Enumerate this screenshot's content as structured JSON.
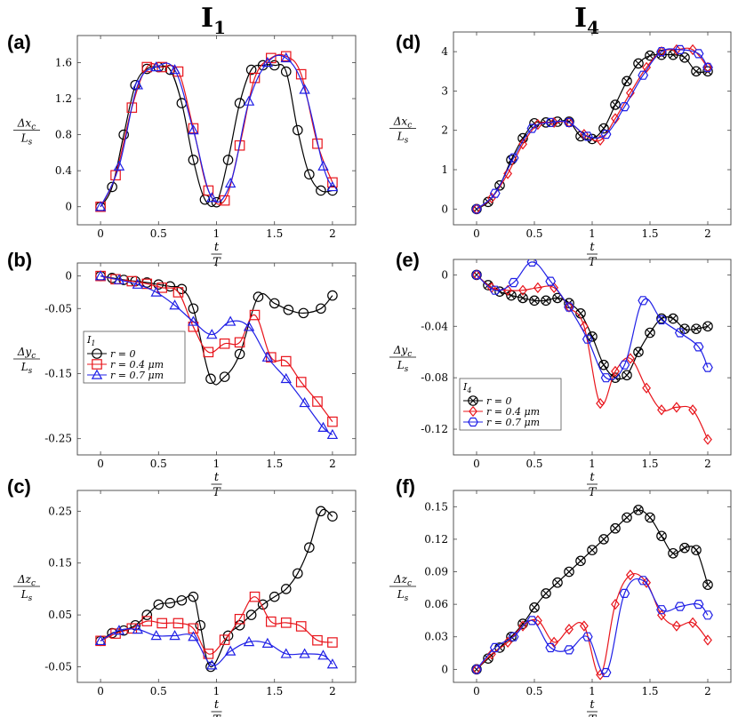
{
  "columns": [
    {
      "title": "I",
      "subscript": "1"
    },
    {
      "title": "I",
      "subscript": "4"
    }
  ],
  "colors": {
    "r0": "#000000",
    "r04": "#e8141b",
    "r07": "#1f1fe6"
  },
  "chart_data": [
    {
      "id": "a",
      "panel_label": "(a)",
      "type": "line",
      "ylabel_num": "Δx",
      "ylabel_num_sub": "c",
      "ylabel_den": "L",
      "ylabel_den_sub": "s",
      "xlabel_num": "t",
      "xlabel_den": "T",
      "xlim": [
        -0.2,
        2.2
      ],
      "ylim": [
        -0.2,
        1.9
      ],
      "xticks": [
        0,
        0.5,
        1,
        1.5,
        2
      ],
      "xtick_labels": [
        "0",
        "0.5",
        "1",
        "1.5",
        "2"
      ],
      "yticks": [
        0,
        0.4,
        0.8,
        1.2,
        1.6
      ],
      "ytick_labels": [
        "0",
        "0.4",
        "0.8",
        "1.2",
        "1.6"
      ],
      "series": [
        {
          "color": "#000000",
          "marker": "circle",
          "x": [
            0,
            0.1,
            0.2,
            0.3,
            0.4,
            0.5,
            0.6,
            0.7,
            0.8,
            0.9,
            1.0,
            1.1,
            1.2,
            1.3,
            1.4,
            1.5,
            1.6,
            1.7,
            1.8,
            1.9,
            2.0
          ],
          "y": [
            0,
            0.22,
            0.8,
            1.35,
            1.53,
            1.55,
            1.52,
            1.15,
            0.52,
            0.08,
            0.05,
            0.52,
            1.15,
            1.52,
            1.57,
            1.57,
            1.5,
            0.85,
            0.36,
            0.18,
            0.18
          ]
        },
        {
          "color": "#e8141b",
          "marker": "square",
          "x": [
            0,
            0.13,
            0.27,
            0.4,
            0.53,
            0.67,
            0.8,
            0.93,
            1.07,
            1.2,
            1.33,
            1.47,
            1.6,
            1.73,
            1.87,
            2.0
          ],
          "y": [
            0,
            0.35,
            1.1,
            1.55,
            1.55,
            1.5,
            0.87,
            0.18,
            0.07,
            0.68,
            1.43,
            1.65,
            1.67,
            1.47,
            0.7,
            0.27
          ]
        },
        {
          "color": "#1f1fe6",
          "marker": "triangle",
          "x": [
            0,
            0.16,
            0.32,
            0.48,
            0.64,
            0.8,
            0.96,
            1.12,
            1.28,
            1.44,
            1.6,
            1.76,
            1.92,
            2.0
          ],
          "y": [
            0,
            0.45,
            1.35,
            1.55,
            1.52,
            0.85,
            0.1,
            0.26,
            1.17,
            1.6,
            1.65,
            1.3,
            0.45,
            0.22
          ]
        }
      ]
    },
    {
      "id": "b",
      "panel_label": "(b)",
      "type": "line",
      "ylabel_num": "Δy",
      "ylabel_num_sub": "c",
      "ylabel_den": "L",
      "ylabel_den_sub": "s",
      "xlabel_num": "t",
      "xlabel_den": "T",
      "xlim": [
        -0.2,
        2.2
      ],
      "ylim": [
        -0.275,
        0.02
      ],
      "xticks": [
        0,
        0.5,
        1,
        1.5,
        2
      ],
      "xtick_labels": [
        "0",
        "0.5",
        "1",
        "1.5",
        "2"
      ],
      "yticks": [
        0,
        -0.05,
        -0.15,
        -0.25
      ],
      "ytick_labels": [
        "0",
        "-0.05",
        "-0.15",
        "-0.25"
      ],
      "legend": {
        "title_main": "I",
        "title_sub": "1",
        "position": "center-left",
        "entries": [
          {
            "name": "r = 0",
            "color": "#000000",
            "marker": "circle"
          },
          {
            "name": "r = 0.4 μm",
            "color": "#e8141b",
            "marker": "square"
          },
          {
            "name": "r = 0.7 μm",
            "color": "#1f1fe6",
            "marker": "triangle"
          }
        ]
      },
      "series": [
        {
          "color": "#000000",
          "marker": "circle",
          "x": [
            0,
            0.1,
            0.2,
            0.3,
            0.4,
            0.5,
            0.6,
            0.7,
            0.8,
            0.95,
            1.07,
            1.2,
            1.36,
            1.5,
            1.62,
            1.75,
            1.9,
            2.0
          ],
          "y": [
            0,
            -0.003,
            -0.006,
            -0.008,
            -0.01,
            -0.013,
            -0.016,
            -0.02,
            -0.05,
            -0.158,
            -0.155,
            -0.12,
            -0.032,
            -0.042,
            -0.052,
            -0.057,
            -0.05,
            -0.03
          ]
        },
        {
          "color": "#e8141b",
          "marker": "square",
          "x": [
            0,
            0.13,
            0.27,
            0.4,
            0.53,
            0.67,
            0.8,
            0.93,
            1.07,
            1.2,
            1.33,
            1.47,
            1.6,
            1.73,
            1.87,
            2.0
          ],
          "y": [
            0,
            -0.005,
            -0.008,
            -0.012,
            -0.018,
            -0.025,
            -0.078,
            -0.117,
            -0.104,
            -0.102,
            -0.06,
            -0.125,
            -0.131,
            -0.163,
            -0.193,
            -0.224
          ]
        },
        {
          "color": "#1f1fe6",
          "marker": "triangle",
          "x": [
            0,
            0.16,
            0.32,
            0.48,
            0.64,
            0.8,
            0.96,
            1.12,
            1.28,
            1.44,
            1.6,
            1.76,
            1.92,
            2.0
          ],
          "y": [
            0,
            -0.006,
            -0.013,
            -0.025,
            -0.045,
            -0.07,
            -0.09,
            -0.07,
            -0.078,
            -0.125,
            -0.158,
            -0.195,
            -0.233,
            -0.244
          ]
        }
      ]
    },
    {
      "id": "c",
      "panel_label": "(c)",
      "type": "line",
      "ylabel_num": "Δz",
      "ylabel_num_sub": "c",
      "ylabel_den": "L",
      "ylabel_den_sub": "s",
      "xlabel_num": "t",
      "xlabel_den": "T",
      "xlim": [
        -0.2,
        2.2
      ],
      "ylim": [
        -0.08,
        0.29
      ],
      "xticks": [
        0,
        0.5,
        1,
        1.5,
        2
      ],
      "xtick_labels": [
        "0",
        "0.5",
        "1",
        "1.5",
        "2"
      ],
      "yticks": [
        0.25,
        0.15,
        0.05,
        -0.05
      ],
      "ytick_labels": [
        "0.25",
        "0.15",
        "0.05",
        "-0.05"
      ],
      "series": [
        {
          "color": "#000000",
          "marker": "circle",
          "x": [
            0,
            0.1,
            0.2,
            0.3,
            0.4,
            0.5,
            0.6,
            0.7,
            0.8,
            0.86,
            0.95,
            1.1,
            1.2,
            1.3,
            1.4,
            1.5,
            1.6,
            1.7,
            1.8,
            1.9,
            2.0
          ],
          "y": [
            0,
            0.015,
            0.02,
            0.03,
            0.05,
            0.07,
            0.073,
            0.078,
            0.085,
            0.03,
            -0.05,
            0.01,
            0.03,
            0.05,
            0.07,
            0.085,
            0.1,
            0.13,
            0.18,
            0.25,
            0.24
          ]
        },
        {
          "color": "#e8141b",
          "marker": "square",
          "x": [
            0,
            0.13,
            0.27,
            0.4,
            0.53,
            0.67,
            0.8,
            0.93,
            1.07,
            1.2,
            1.33,
            1.47,
            1.6,
            1.73,
            1.87,
            2.0
          ],
          "y": [
            0,
            0.014,
            0.024,
            0.038,
            0.034,
            0.034,
            0.024,
            -0.025,
            0.002,
            0.042,
            0.085,
            0.037,
            0.035,
            0.028,
            0.001,
            -0.003
          ]
        },
        {
          "color": "#1f1fe6",
          "marker": "triangle",
          "x": [
            0,
            0.16,
            0.32,
            0.48,
            0.64,
            0.8,
            0.96,
            1.12,
            1.28,
            1.44,
            1.6,
            1.76,
            1.92,
            2.0
          ],
          "y": [
            0,
            0.02,
            0.022,
            0.01,
            0.01,
            0.008,
            -0.047,
            -0.02,
            -0.002,
            -0.005,
            -0.025,
            -0.025,
            -0.028,
            -0.045
          ]
        }
      ]
    },
    {
      "id": "d",
      "panel_label": "(d)",
      "type": "line",
      "ylabel_num": "Δx",
      "ylabel_num_sub": "c",
      "ylabel_den": "L",
      "ylabel_den_sub": "s",
      "xlabel_num": "t",
      "xlabel_den": "T",
      "xlim": [
        -0.2,
        2.2
      ],
      "ylim": [
        -0.4,
        4.5
      ],
      "xticks": [
        0,
        0.5,
        1,
        1.5,
        2
      ],
      "xtick_labels": [
        "0",
        "0.5",
        "1",
        "1.5",
        "2"
      ],
      "yticks": [
        0,
        1,
        2,
        3,
        4
      ],
      "ytick_labels": [
        "0",
        "1",
        "2",
        "3",
        "4"
      ],
      "series": [
        {
          "color": "#000000",
          "marker": "circle-x",
          "x": [
            0,
            0.1,
            0.2,
            0.3,
            0.4,
            0.5,
            0.6,
            0.7,
            0.8,
            0.9,
            1.0,
            1.1,
            1.2,
            1.3,
            1.4,
            1.5,
            1.6,
            1.7,
            1.8,
            1.9,
            2.0
          ],
          "y": [
            0,
            0.18,
            0.6,
            1.25,
            1.8,
            2.18,
            2.2,
            2.22,
            2.22,
            1.85,
            1.78,
            2.05,
            2.65,
            3.25,
            3.7,
            3.9,
            3.92,
            3.92,
            3.85,
            3.5,
            3.5
          ]
        },
        {
          "color": "#e8141b",
          "marker": "diamond",
          "x": [
            0,
            0.13,
            0.27,
            0.4,
            0.53,
            0.67,
            0.8,
            0.93,
            1.07,
            1.2,
            1.33,
            1.47,
            1.6,
            1.73,
            1.87,
            2.0
          ],
          "y": [
            0,
            0.28,
            0.9,
            1.65,
            2.15,
            2.2,
            2.2,
            1.9,
            1.75,
            2.3,
            2.95,
            3.6,
            4.0,
            4.05,
            4.05,
            3.6
          ]
        },
        {
          "color": "#1f1fe6",
          "marker": "hexagon",
          "x": [
            0,
            0.16,
            0.32,
            0.48,
            0.64,
            0.8,
            0.96,
            1.12,
            1.28,
            1.44,
            1.6,
            1.76,
            1.92,
            2.0
          ],
          "y": [
            0,
            0.4,
            1.3,
            2.05,
            2.2,
            2.2,
            1.85,
            1.9,
            2.6,
            3.4,
            4.0,
            4.05,
            3.95,
            3.6
          ]
        }
      ]
    },
    {
      "id": "e",
      "panel_label": "(e)",
      "type": "line",
      "ylabel_num": "Δy",
      "ylabel_num_sub": "c",
      "ylabel_den": "L",
      "ylabel_den_sub": "s",
      "xlabel_num": "t",
      "xlabel_den": "T",
      "xlim": [
        -0.2,
        2.2
      ],
      "ylim": [
        -0.14,
        0.012
      ],
      "xticks": [
        0,
        0.5,
        1,
        1.5,
        2
      ],
      "xtick_labels": [
        "0",
        "0.5",
        "1",
        "1.5",
        "2"
      ],
      "yticks": [
        0,
        -0.04,
        -0.08,
        -0.12
      ],
      "ytick_labels": [
        "0",
        "-0.04",
        "-0.08",
        "-0.12"
      ],
      "legend": {
        "title_main": "I",
        "title_sub": "4",
        "position": "center-left",
        "entries": [
          {
            "name": "r = 0",
            "color": "#000000",
            "marker": "circle-x"
          },
          {
            "name": "r = 0.4 μm",
            "color": "#e8141b",
            "marker": "diamond"
          },
          {
            "name": "r = 0.7 μm",
            "color": "#1f1fe6",
            "marker": "hexagon"
          }
        ]
      },
      "series": [
        {
          "color": "#000000",
          "marker": "circle-x",
          "x": [
            0,
            0.1,
            0.2,
            0.3,
            0.4,
            0.5,
            0.6,
            0.7,
            0.8,
            0.9,
            1.0,
            1.1,
            1.2,
            1.3,
            1.4,
            1.5,
            1.6,
            1.7,
            1.8,
            1.9,
            2.0
          ],
          "y": [
            0,
            -0.008,
            -0.013,
            -0.016,
            -0.018,
            -0.02,
            -0.02,
            -0.018,
            -0.022,
            -0.03,
            -0.048,
            -0.07,
            -0.08,
            -0.078,
            -0.06,
            -0.045,
            -0.034,
            -0.034,
            -0.042,
            -0.042,
            -0.04
          ]
        },
        {
          "color": "#e8141b",
          "marker": "diamond",
          "x": [
            0,
            0.13,
            0.27,
            0.4,
            0.53,
            0.67,
            0.8,
            0.93,
            1.07,
            1.2,
            1.33,
            1.47,
            1.6,
            1.73,
            1.87,
            2.0
          ],
          "y": [
            0,
            -0.01,
            -0.012,
            -0.012,
            -0.01,
            -0.01,
            -0.025,
            -0.04,
            -0.1,
            -0.075,
            -0.065,
            -0.088,
            -0.105,
            -0.103,
            -0.105,
            -0.128
          ]
        },
        {
          "color": "#1f1fe6",
          "marker": "hexagon",
          "x": [
            0,
            0.16,
            0.32,
            0.48,
            0.64,
            0.8,
            0.96,
            1.12,
            1.28,
            1.44,
            1.6,
            1.76,
            1.92,
            2.0
          ],
          "y": [
            0,
            -0.012,
            -0.006,
            0.01,
            -0.005,
            -0.025,
            -0.05,
            -0.08,
            -0.07,
            -0.02,
            -0.035,
            -0.045,
            -0.056,
            -0.072
          ]
        }
      ]
    },
    {
      "id": "f",
      "panel_label": "(f)",
      "type": "line",
      "ylabel_num": "Δz",
      "ylabel_num_sub": "c",
      "ylabel_den": "L",
      "ylabel_den_sub": "s",
      "xlabel_num": "t",
      "xlabel_den": "T",
      "xlim": [
        -0.2,
        2.2
      ],
      "ylim": [
        -0.012,
        0.165
      ],
      "xticks": [
        0,
        0.5,
        1,
        1.5,
        2
      ],
      "xtick_labels": [
        "0",
        "0.5",
        "1",
        "1.5",
        "2"
      ],
      "yticks": [
        0,
        0.03,
        0.06,
        0.09,
        0.12,
        0.15
      ],
      "ytick_labels": [
        "0",
        "0.03",
        "0.06",
        "0.09",
        "0.12",
        "0.15"
      ],
      "series": [
        {
          "color": "#000000",
          "marker": "circle-x",
          "x": [
            0,
            0.1,
            0.2,
            0.3,
            0.4,
            0.5,
            0.6,
            0.7,
            0.8,
            0.9,
            1.0,
            1.1,
            1.2,
            1.3,
            1.4,
            1.5,
            1.6,
            1.7,
            1.8,
            1.9,
            2.0
          ],
          "y": [
            0,
            0.01,
            0.02,
            0.03,
            0.042,
            0.057,
            0.07,
            0.08,
            0.09,
            0.1,
            0.11,
            0.12,
            0.13,
            0.14,
            0.147,
            0.14,
            0.123,
            0.107,
            0.112,
            0.11,
            0.078
          ]
        },
        {
          "color": "#e8141b",
          "marker": "diamond",
          "x": [
            0,
            0.13,
            0.27,
            0.4,
            0.53,
            0.67,
            0.8,
            0.93,
            1.07,
            1.2,
            1.33,
            1.47,
            1.6,
            1.73,
            1.87,
            2.0
          ],
          "y": [
            0,
            0.014,
            0.025,
            0.04,
            0.045,
            0.025,
            0.037,
            0.04,
            -0.005,
            0.06,
            0.087,
            0.08,
            0.05,
            0.04,
            0.043,
            0.027
          ]
        },
        {
          "color": "#1f1fe6",
          "marker": "hexagon",
          "x": [
            0,
            0.16,
            0.32,
            0.48,
            0.64,
            0.8,
            0.96,
            1.12,
            1.28,
            1.44,
            1.6,
            1.76,
            1.92,
            2.0
          ],
          "y": [
            0,
            0.02,
            0.03,
            0.045,
            0.02,
            0.018,
            0.03,
            -0.003,
            0.07,
            0.082,
            0.055,
            0.058,
            0.06,
            0.05
          ]
        }
      ]
    }
  ]
}
